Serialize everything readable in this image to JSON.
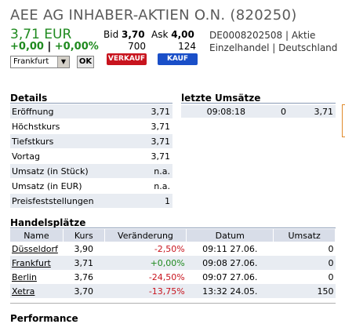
{
  "header": {
    "title": "AEE AG INHABER-AKTIEN O.N. (820250)",
    "price": "3,71 EUR",
    "change_abs": "+0,00",
    "change_sep": "|",
    "change_pct": "+0,00%",
    "bid_label": "Bid",
    "bid_value": "3,70",
    "ask_label": "Ask",
    "ask_value": "4,00",
    "bid_size": "700",
    "ask_size": "124",
    "isin_line": "DE0008202508 | Aktie",
    "sector_line": "Einzelhandel | Deutschland"
  },
  "controls": {
    "exchange_select": "Frankfurt",
    "ok_label": "OK",
    "sell_label": "VERKAUF",
    "buy_label": "KAUF"
  },
  "details": {
    "heading": "Details",
    "rows": [
      {
        "label": "Eröffnung",
        "value": "3,71"
      },
      {
        "label": "Höchstkurs",
        "value": "3,71"
      },
      {
        "label": "Tiefstkurs",
        "value": "3,71"
      },
      {
        "label": "Vortag",
        "value": "3,71"
      },
      {
        "label": "Umsatz (in Stück)",
        "value": "n.a."
      },
      {
        "label": "Umsatz (in EUR)",
        "value": "n.a."
      },
      {
        "label": "Preisfeststellungen",
        "value": "1"
      }
    ]
  },
  "trades": {
    "heading": "letzte Umsätze",
    "rows": [
      {
        "time": "09:08:18",
        "volume": "0",
        "price": "3,71"
      }
    ]
  },
  "venues": {
    "heading": "Handelsplätze",
    "columns": [
      "Name",
      "Kurs",
      "Veränderung",
      "Datum",
      "Umsatz"
    ],
    "rows": [
      {
        "name": "Düsseldorf",
        "kurs": "3,90",
        "change": "-2,50%",
        "datum": "09:11 27.06.",
        "umsatz": "0"
      },
      {
        "name": "Frankfurt",
        "kurs": "3,71",
        "change": "+0,00%",
        "datum": "09:08 27.06.",
        "umsatz": "0"
      },
      {
        "name": "Berlin",
        "kurs": "3,76",
        "change": "-24,50%",
        "datum": "09:07 27.06.",
        "umsatz": "0"
      },
      {
        "name": "Xetra",
        "kurs": "3,70",
        "change": "-13,75%",
        "datum": "13:32 24.05.",
        "umsatz": "150"
      }
    ]
  },
  "footer": {
    "next_heading": "Performance"
  },
  "colors": {
    "positive": "#1f8a1f",
    "negative": "#c8141e",
    "row_shade": "#e8ecf2",
    "sell": "#c8141e",
    "buy": "#1a4fc8"
  }
}
